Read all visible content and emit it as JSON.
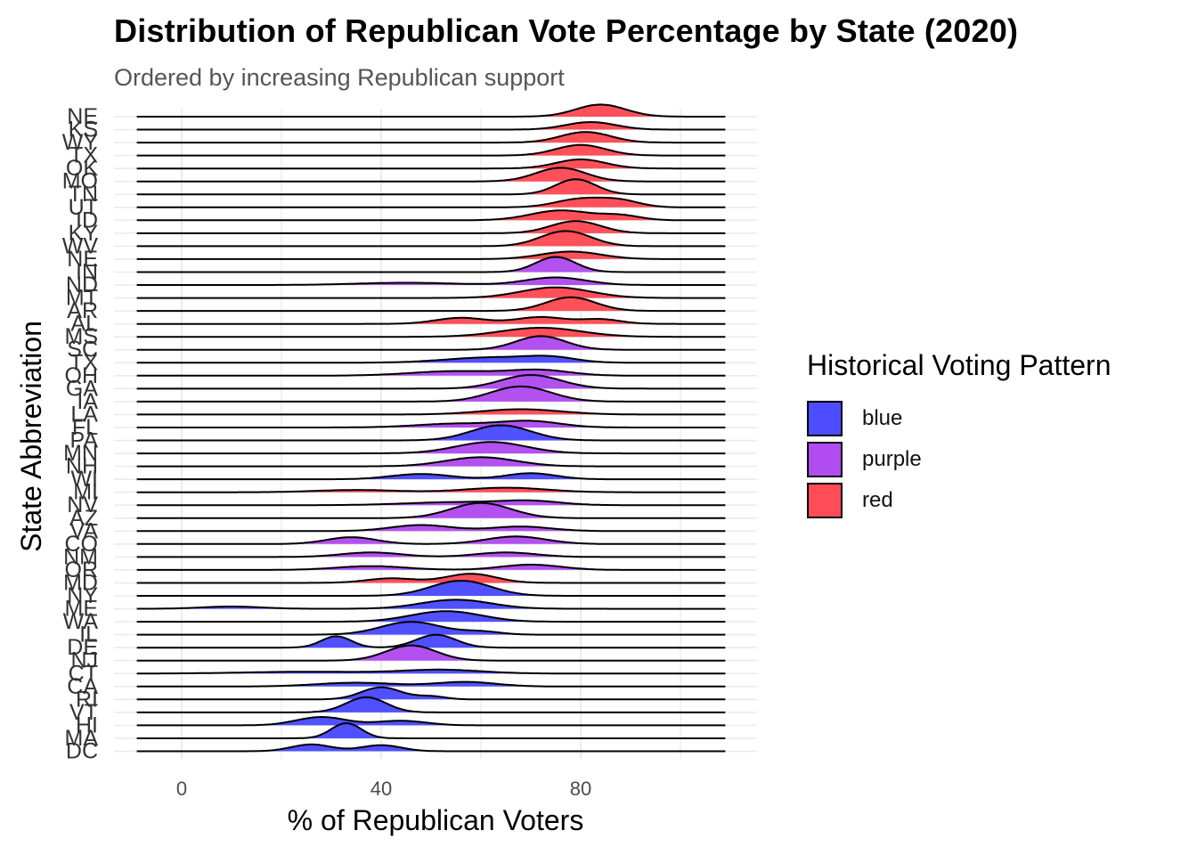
{
  "chart_data": {
    "type": "ridgeline",
    "title": "Distribution of Republican Vote Percentage by State (2020)",
    "subtitle": "Ordered by increasing Republican support",
    "xlabel": "% of Republican Voters",
    "ylabel": "State Abbreviation",
    "xlim": [
      -9,
      109
    ],
    "x_ticks": [
      0,
      40,
      80
    ],
    "grid": true,
    "legend": {
      "title": "Historical Voting Pattern",
      "position": "right",
      "items": [
        {
          "label": "blue",
          "color": "#4d4dff"
        },
        {
          "label": "purple",
          "color": "#b14df0"
        },
        {
          "label": "red",
          "color": "#ff4d57"
        }
      ]
    },
    "states": [
      {
        "abbr": "DC",
        "pattern": "blue",
        "peaks": [
          {
            "mean": 26,
            "sd": 4,
            "w": 0.45
          },
          {
            "mean": 40,
            "sd": 4,
            "w": 0.4
          }
        ]
      },
      {
        "abbr": "MA",
        "pattern": "blue",
        "peaks": [
          {
            "mean": 33,
            "sd": 3,
            "w": 1.0
          }
        ]
      },
      {
        "abbr": "HI",
        "pattern": "blue",
        "peaks": [
          {
            "mean": 28,
            "sd": 5,
            "w": 0.55
          },
          {
            "mean": 44,
            "sd": 5,
            "w": 0.3
          }
        ]
      },
      {
        "abbr": "VT",
        "pattern": "blue",
        "peaks": [
          {
            "mean": 37,
            "sd": 4,
            "w": 1.0
          }
        ]
      },
      {
        "abbr": "RI",
        "pattern": "blue",
        "peaks": [
          {
            "mean": 40,
            "sd": 4,
            "w": 0.8
          },
          {
            "mean": 50,
            "sd": 3,
            "w": 0.2
          }
        ]
      },
      {
        "abbr": "CA",
        "pattern": "blue",
        "peaks": [
          {
            "mean": 35,
            "sd": 8,
            "w": 0.25
          },
          {
            "mean": 57,
            "sd": 6,
            "w": 0.3
          }
        ]
      },
      {
        "abbr": "CT",
        "pattern": "blue",
        "peaks": [
          {
            "mean": 25,
            "sd": 12,
            "w": 0.12
          },
          {
            "mean": 52,
            "sd": 8,
            "w": 0.25
          }
        ]
      },
      {
        "abbr": "NJ",
        "pattern": "purple",
        "peaks": [
          {
            "mean": 46,
            "sd": 5,
            "w": 1.0
          }
        ]
      },
      {
        "abbr": "DE",
        "pattern": "blue",
        "peaks": [
          {
            "mean": 31,
            "sd": 3,
            "w": 0.75
          },
          {
            "mean": 51,
            "sd": 4,
            "w": 0.85
          }
        ]
      },
      {
        "abbr": "IL",
        "pattern": "blue",
        "peaks": [
          {
            "mean": 46,
            "sd": 6,
            "w": 0.85
          },
          {
            "mean": 60,
            "sd": 4,
            "w": 0.2
          }
        ]
      },
      {
        "abbr": "WA",
        "pattern": "blue",
        "peaks": [
          {
            "mean": 53,
            "sd": 7,
            "w": 0.7
          }
        ]
      },
      {
        "abbr": "ME",
        "pattern": "blue",
        "peaks": [
          {
            "mean": 10,
            "sd": 6,
            "w": 0.15
          },
          {
            "mean": 55,
            "sd": 7,
            "w": 0.6
          }
        ]
      },
      {
        "abbr": "NY",
        "pattern": "blue",
        "peaks": [
          {
            "mean": 56,
            "sd": 6,
            "w": 1.0
          }
        ]
      },
      {
        "abbr": "MD",
        "pattern": "red",
        "peaks": [
          {
            "mean": 42,
            "sd": 5,
            "w": 0.3
          },
          {
            "mean": 58,
            "sd": 5,
            "w": 0.6
          }
        ]
      },
      {
        "abbr": "OR",
        "pattern": "purple",
        "peaks": [
          {
            "mean": 38,
            "sd": 7,
            "w": 0.25
          },
          {
            "mean": 70,
            "sd": 6,
            "w": 0.35
          }
        ]
      },
      {
        "abbr": "NM",
        "pattern": "purple",
        "peaks": [
          {
            "mean": 38,
            "sd": 6,
            "w": 0.3
          },
          {
            "mean": 65,
            "sd": 6,
            "w": 0.3
          }
        ]
      },
      {
        "abbr": "CO",
        "pattern": "purple",
        "peaks": [
          {
            "mean": 34,
            "sd": 5,
            "w": 0.45
          },
          {
            "mean": 67,
            "sd": 6,
            "w": 0.5
          }
        ]
      },
      {
        "abbr": "VA",
        "pattern": "purple",
        "peaks": [
          {
            "mean": 48,
            "sd": 6,
            "w": 0.4
          },
          {
            "mean": 68,
            "sd": 6,
            "w": 0.3
          }
        ]
      },
      {
        "abbr": "AZ",
        "pattern": "purple",
        "peaks": [
          {
            "mean": 60,
            "sd": 6,
            "w": 1.0
          }
        ]
      },
      {
        "abbr": "NV",
        "pattern": "purple",
        "peaks": [
          {
            "mean": 55,
            "sd": 10,
            "w": 0.2
          },
          {
            "mean": 70,
            "sd": 6,
            "w": 0.25
          }
        ]
      },
      {
        "abbr": "MI",
        "pattern": "red",
        "peaks": [
          {
            "mean": 35,
            "sd": 8,
            "w": 0.15
          },
          {
            "mean": 65,
            "sd": 8,
            "w": 0.3
          }
        ]
      },
      {
        "abbr": "WI",
        "pattern": "blue",
        "peaks": [
          {
            "mean": 48,
            "sd": 6,
            "w": 0.35
          },
          {
            "mean": 70,
            "sd": 5,
            "w": 0.4
          }
        ]
      },
      {
        "abbr": "NH",
        "pattern": "purple",
        "peaks": [
          {
            "mean": 60,
            "sd": 7,
            "w": 0.6
          }
        ]
      },
      {
        "abbr": "MN",
        "pattern": "purple",
        "peaks": [
          {
            "mean": 62,
            "sd": 7,
            "w": 0.75
          }
        ]
      },
      {
        "abbr": "PA",
        "pattern": "blue",
        "peaks": [
          {
            "mean": 64,
            "sd": 6,
            "w": 1.0
          }
        ]
      },
      {
        "abbr": "FL",
        "pattern": "purple",
        "peaks": [
          {
            "mean": 55,
            "sd": 8,
            "w": 0.25
          },
          {
            "mean": 70,
            "sd": 6,
            "w": 0.4
          }
        ]
      },
      {
        "abbr": "LA",
        "pattern": "red",
        "peaks": [
          {
            "mean": 68,
            "sd": 8,
            "w": 0.35
          }
        ]
      },
      {
        "abbr": "IA",
        "pattern": "purple",
        "peaks": [
          {
            "mean": 68,
            "sd": 6,
            "w": 1.0
          }
        ]
      },
      {
        "abbr": "GA",
        "pattern": "purple",
        "peaks": [
          {
            "mean": 70,
            "sd": 6,
            "w": 0.9
          }
        ]
      },
      {
        "abbr": "OH",
        "pattern": "purple",
        "peaks": [
          {
            "mean": 55,
            "sd": 9,
            "w": 0.3
          },
          {
            "mean": 72,
            "sd": 6,
            "w": 0.35
          }
        ]
      },
      {
        "abbr": "TX",
        "pattern": "blue",
        "peaks": [
          {
            "mean": 62,
            "sd": 9,
            "w": 0.35
          },
          {
            "mean": 74,
            "sd": 5,
            "w": 0.3
          }
        ]
      },
      {
        "abbr": "SC",
        "pattern": "purple",
        "peaks": [
          {
            "mean": 72,
            "sd": 5,
            "w": 0.9
          }
        ]
      },
      {
        "abbr": "MS",
        "pattern": "red",
        "peaks": [
          {
            "mean": 72,
            "sd": 8,
            "w": 0.6
          }
        ]
      },
      {
        "abbr": "AL",
        "pattern": "red",
        "peaks": [
          {
            "mean": 56,
            "sd": 5,
            "w": 0.4
          },
          {
            "mean": 72,
            "sd": 5,
            "w": 0.45
          },
          {
            "mean": 84,
            "sd": 4,
            "w": 0.3
          }
        ]
      },
      {
        "abbr": "AR",
        "pattern": "red",
        "peaks": [
          {
            "mean": 78,
            "sd": 5,
            "w": 0.9
          }
        ]
      },
      {
        "abbr": "MT",
        "pattern": "red",
        "peaks": [
          {
            "mean": 75,
            "sd": 7,
            "w": 0.7
          }
        ]
      },
      {
        "abbr": "ND",
        "pattern": "purple",
        "peaks": [
          {
            "mean": 45,
            "sd": 10,
            "w": 0.15
          },
          {
            "mean": 75,
            "sd": 6,
            "w": 0.5
          }
        ]
      },
      {
        "abbr": "IN",
        "pattern": "purple",
        "peaks": [
          {
            "mean": 75,
            "sd": 4,
            "w": 1.0
          }
        ]
      },
      {
        "abbr": "NE",
        "pattern": "red",
        "peaks": [
          {
            "mean": 78,
            "sd": 6,
            "w": 0.5
          }
        ]
      },
      {
        "abbr": "WV",
        "pattern": "red",
        "peaks": [
          {
            "mean": 77,
            "sd": 5,
            "w": 1.0
          }
        ]
      },
      {
        "abbr": "KY",
        "pattern": "red",
        "peaks": [
          {
            "mean": 79,
            "sd": 5,
            "w": 0.8
          }
        ]
      },
      {
        "abbr": "ID",
        "pattern": "red",
        "peaks": [
          {
            "mean": 76,
            "sd": 6,
            "w": 0.65
          },
          {
            "mean": 88,
            "sd": 4,
            "w": 0.3
          }
        ]
      },
      {
        "abbr": "UT",
        "pattern": "red",
        "peaks": [
          {
            "mean": 80,
            "sd": 5,
            "w": 0.55
          },
          {
            "mean": 88,
            "sd": 4,
            "w": 0.4
          }
        ]
      },
      {
        "abbr": "TN",
        "pattern": "red",
        "peaks": [
          {
            "mean": 79,
            "sd": 4,
            "w": 1.0
          }
        ]
      },
      {
        "abbr": "MO",
        "pattern": "red",
        "peaks": [
          {
            "mean": 76,
            "sd": 5,
            "w": 0.9
          }
        ]
      },
      {
        "abbr": "OK",
        "pattern": "red",
        "peaks": [
          {
            "mean": 80,
            "sd": 5,
            "w": 0.6
          }
        ]
      },
      {
        "abbr": "TX",
        "pattern": "red",
        "peaks": [
          {
            "mean": 80,
            "sd": 5,
            "w": 0.7
          }
        ]
      },
      {
        "abbr": "WY",
        "pattern": "red",
        "peaks": [
          {
            "mean": 81,
            "sd": 5,
            "w": 0.7
          }
        ]
      },
      {
        "abbr": "KS",
        "pattern": "red",
        "peaks": [
          {
            "mean": 82,
            "sd": 5,
            "w": 0.5
          }
        ]
      },
      {
        "abbr": "NE",
        "pattern": "red",
        "peaks": [
          {
            "mean": 84,
            "sd": 5,
            "w": 0.8
          }
        ]
      }
    ]
  }
}
